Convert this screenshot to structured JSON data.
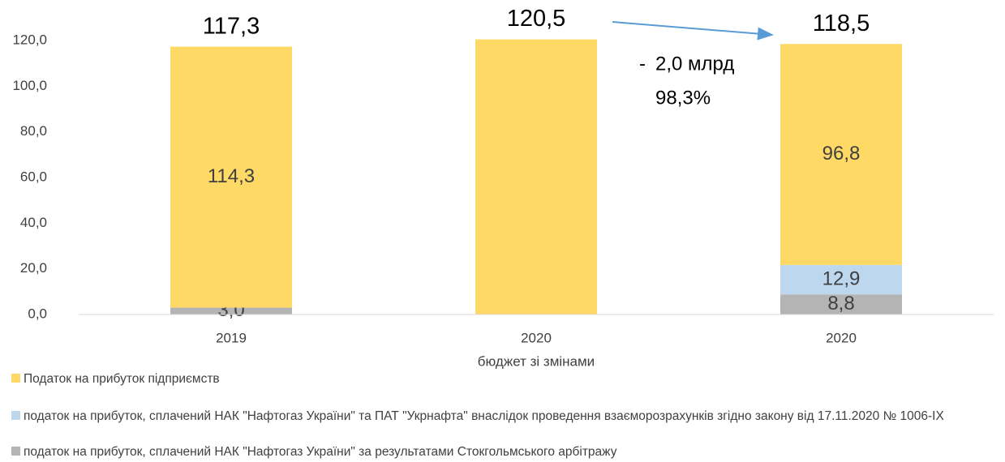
{
  "chart_data": {
    "type": "stacked_bar",
    "categories": [
      "2019",
      [
        "2020",
        "бюджет зі змінами"
      ],
      "2020"
    ],
    "series": [
      {
        "name": "податок на прибуток, сплачений НАК \"Нафтогаз України\" за результатами Стокгольмського арбітражу",
        "color": "#B4B4B4",
        "values": [
          3.0,
          null,
          8.8
        ],
        "value_labels": [
          "3,0",
          null,
          "8,8"
        ]
      },
      {
        "name": "податок на прибуток, сплачений НАК \"Нафтогаз України\"  та ПАТ \"Укрнафта\" внаслідок проведення взаєморозрахунків згідно закону від 17.11.2020 № 1006-IX",
        "color": "#BDD7EE",
        "values": [
          null,
          null,
          12.9
        ],
        "value_labels": [
          null,
          null,
          "12,9"
        ]
      },
      {
        "name": "Податок на прибуток підприємств",
        "color": "#FFD966",
        "values": [
          114.3,
          120.5,
          96.8
        ],
        "value_labels": [
          "114,3",
          null,
          "96,8"
        ]
      }
    ],
    "totals": [
      117.3,
      120.5,
      118.5
    ],
    "total_labels": [
      "117,3",
      "120,5",
      "118,5"
    ],
    "annotations": [
      "-",
      "2,0 млрд",
      "98,3%"
    ],
    "legend_order": [
      2,
      1,
      0
    ],
    "ylim": [
      0,
      120
    ],
    "yticks": [
      {
        "value": 0,
        "label": "0,0"
      },
      {
        "value": 20,
        "label": "20,0"
      },
      {
        "value": 40,
        "label": "40,0"
      },
      {
        "value": 60,
        "label": "60,0"
      },
      {
        "value": 80,
        "label": "80,0"
      },
      {
        "value": 100,
        "label": "100,0"
      },
      {
        "value": 120,
        "label": "120,0"
      }
    ],
    "grid": false
  }
}
